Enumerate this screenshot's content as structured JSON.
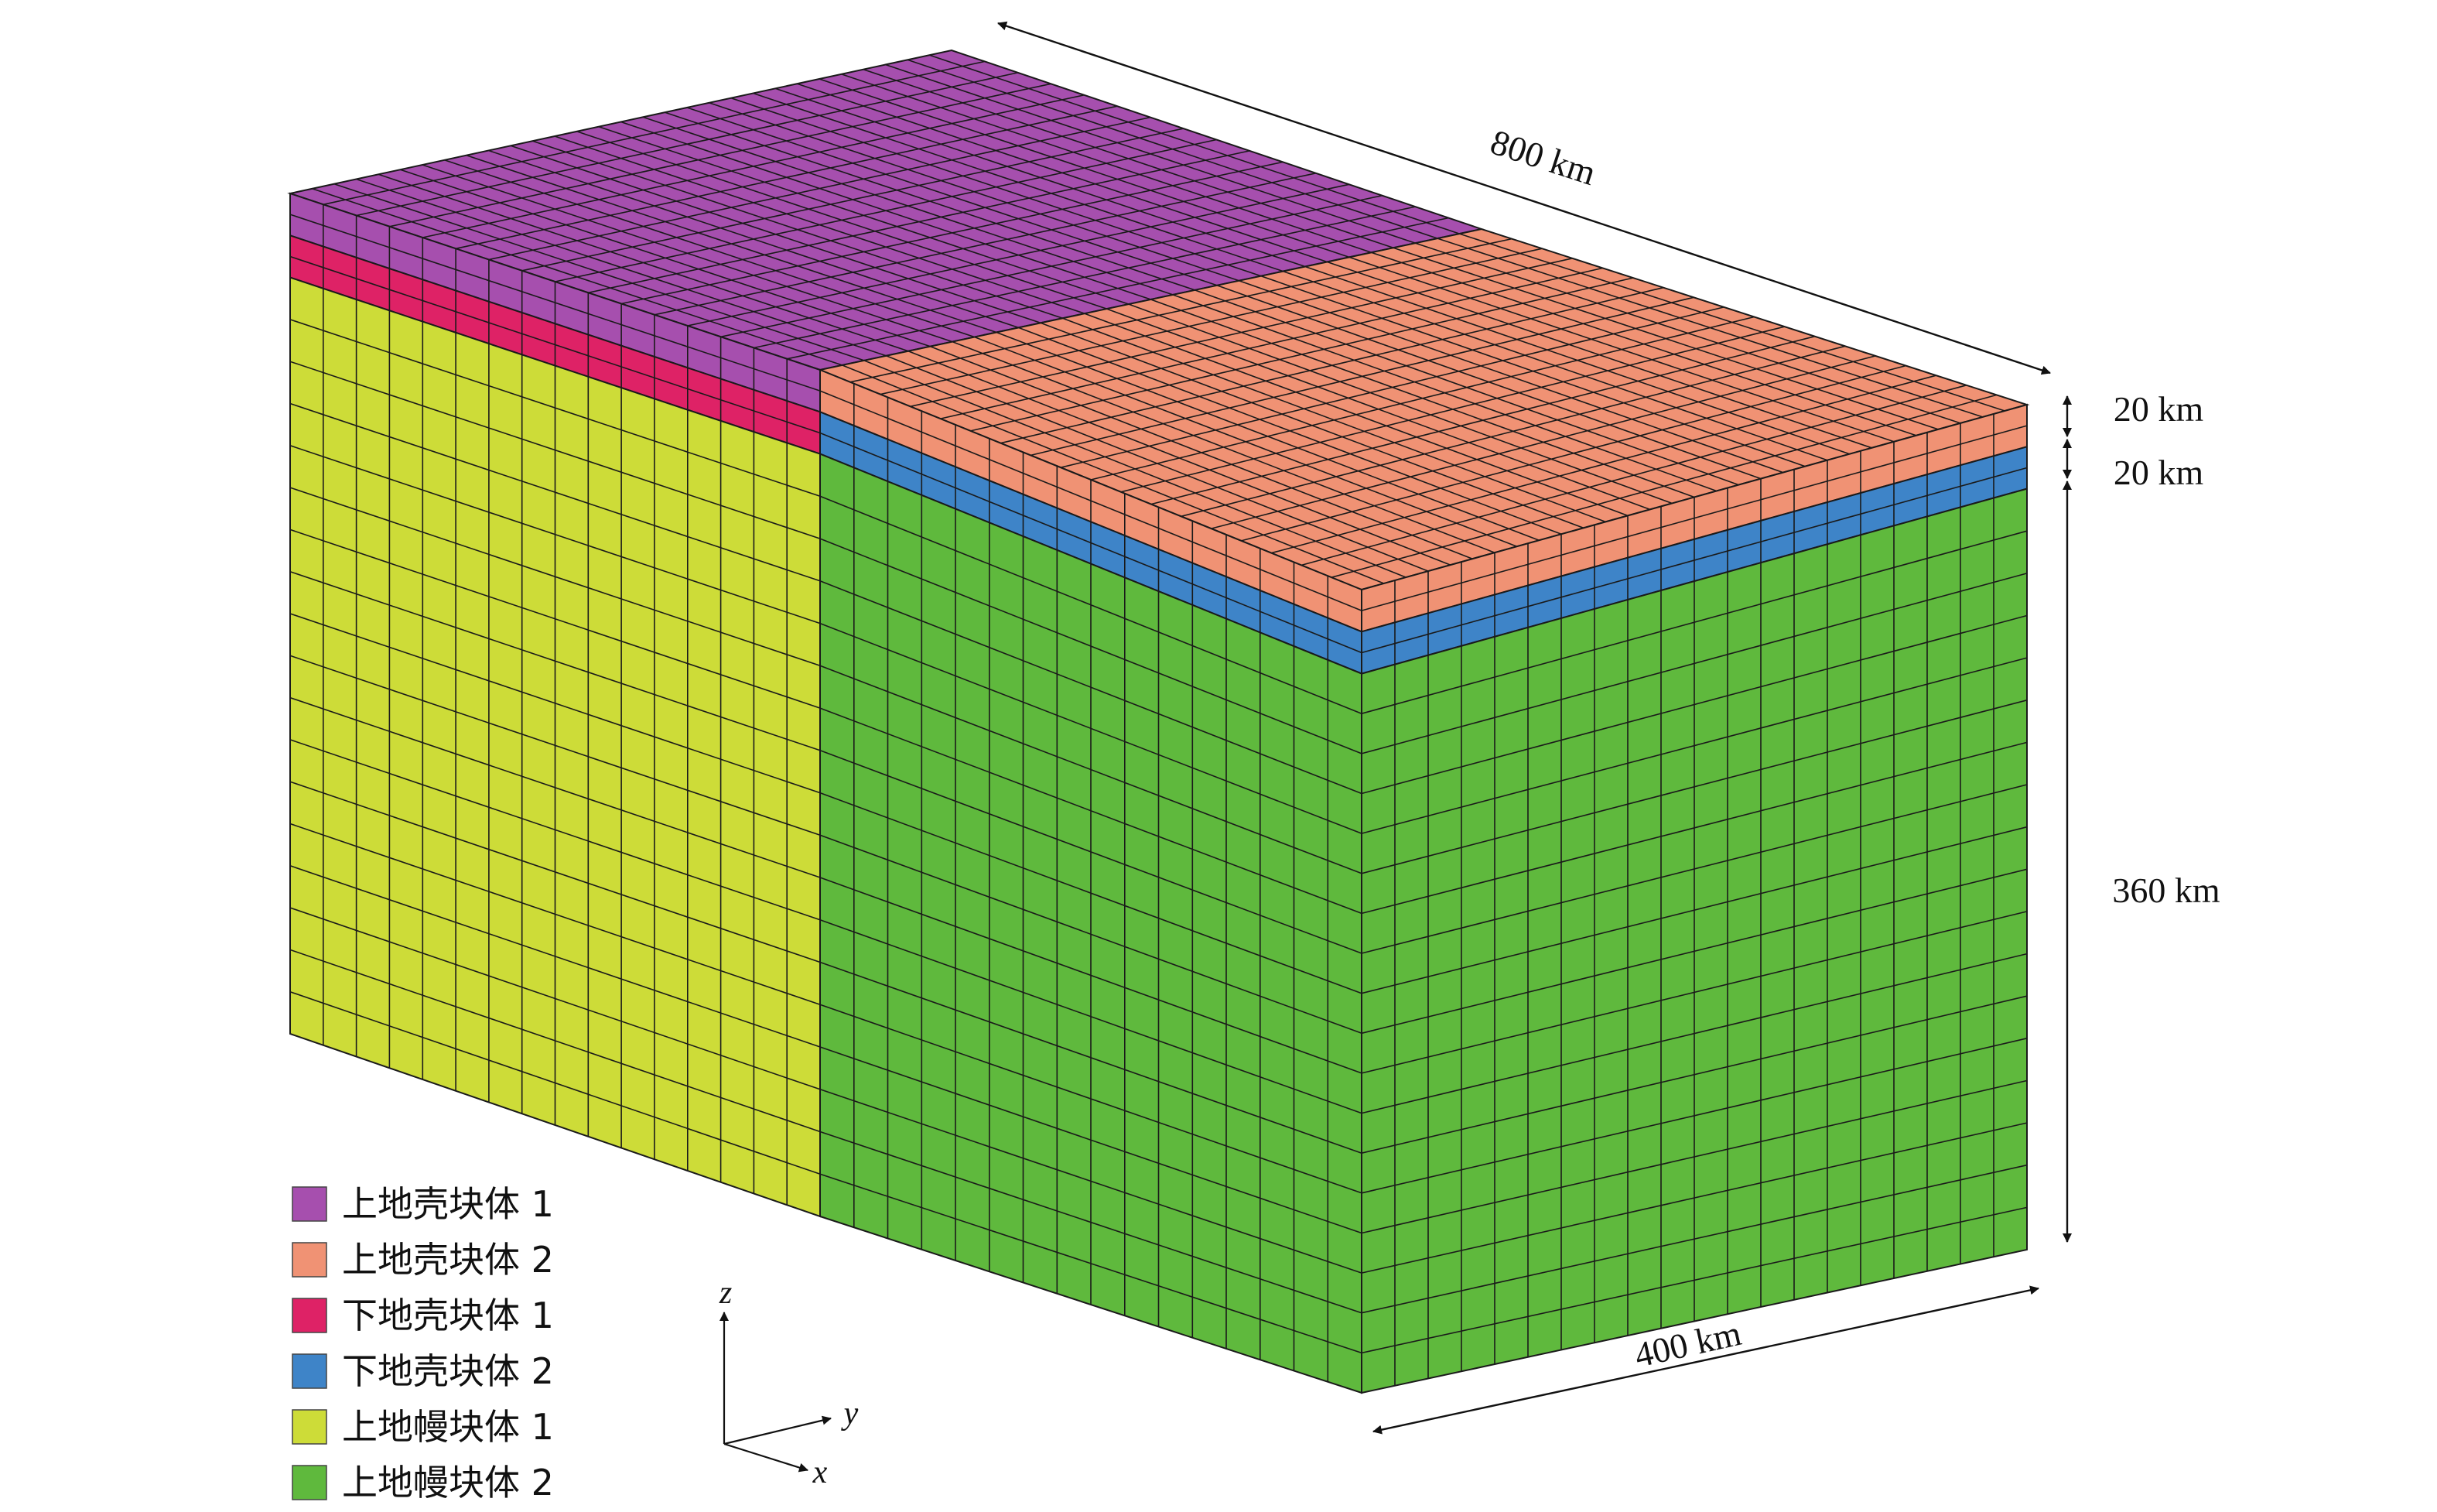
{
  "colors": {
    "upper_crust_1": "#A64FAE",
    "upper_crust_2": "#F09274",
    "lower_crust_1": "#DE2266",
    "lower_crust_2": "#3E84C8",
    "upper_mantle_1": "#CDDC38",
    "upper_mantle_2": "#5FB93D",
    "grid_line": "#1a1a1a",
    "arrow": "#111111"
  },
  "dimensions": {
    "length": "800 km",
    "width": "400 km",
    "upper_crust_thickness": "20 km",
    "lower_crust_thickness": "20 km",
    "mantle_thickness": "360 km"
  },
  "axes": {
    "z": "z",
    "y": "y",
    "x": "x"
  },
  "legend": [
    {
      "label": "上地壳块体 1",
      "color_key": "upper_crust_1"
    },
    {
      "label": "上地壳块体 2",
      "color_key": "upper_crust_2"
    },
    {
      "label": "下地壳块体 1",
      "color_key": "lower_crust_1"
    },
    {
      "label": "下地壳块体 2",
      "color_key": "lower_crust_2"
    },
    {
      "label": "上地幔块体 1",
      "color_key": "upper_mantle_1"
    },
    {
      "label": "上地幔块体 2",
      "color_key": "upper_mantle_2"
    }
  ]
}
